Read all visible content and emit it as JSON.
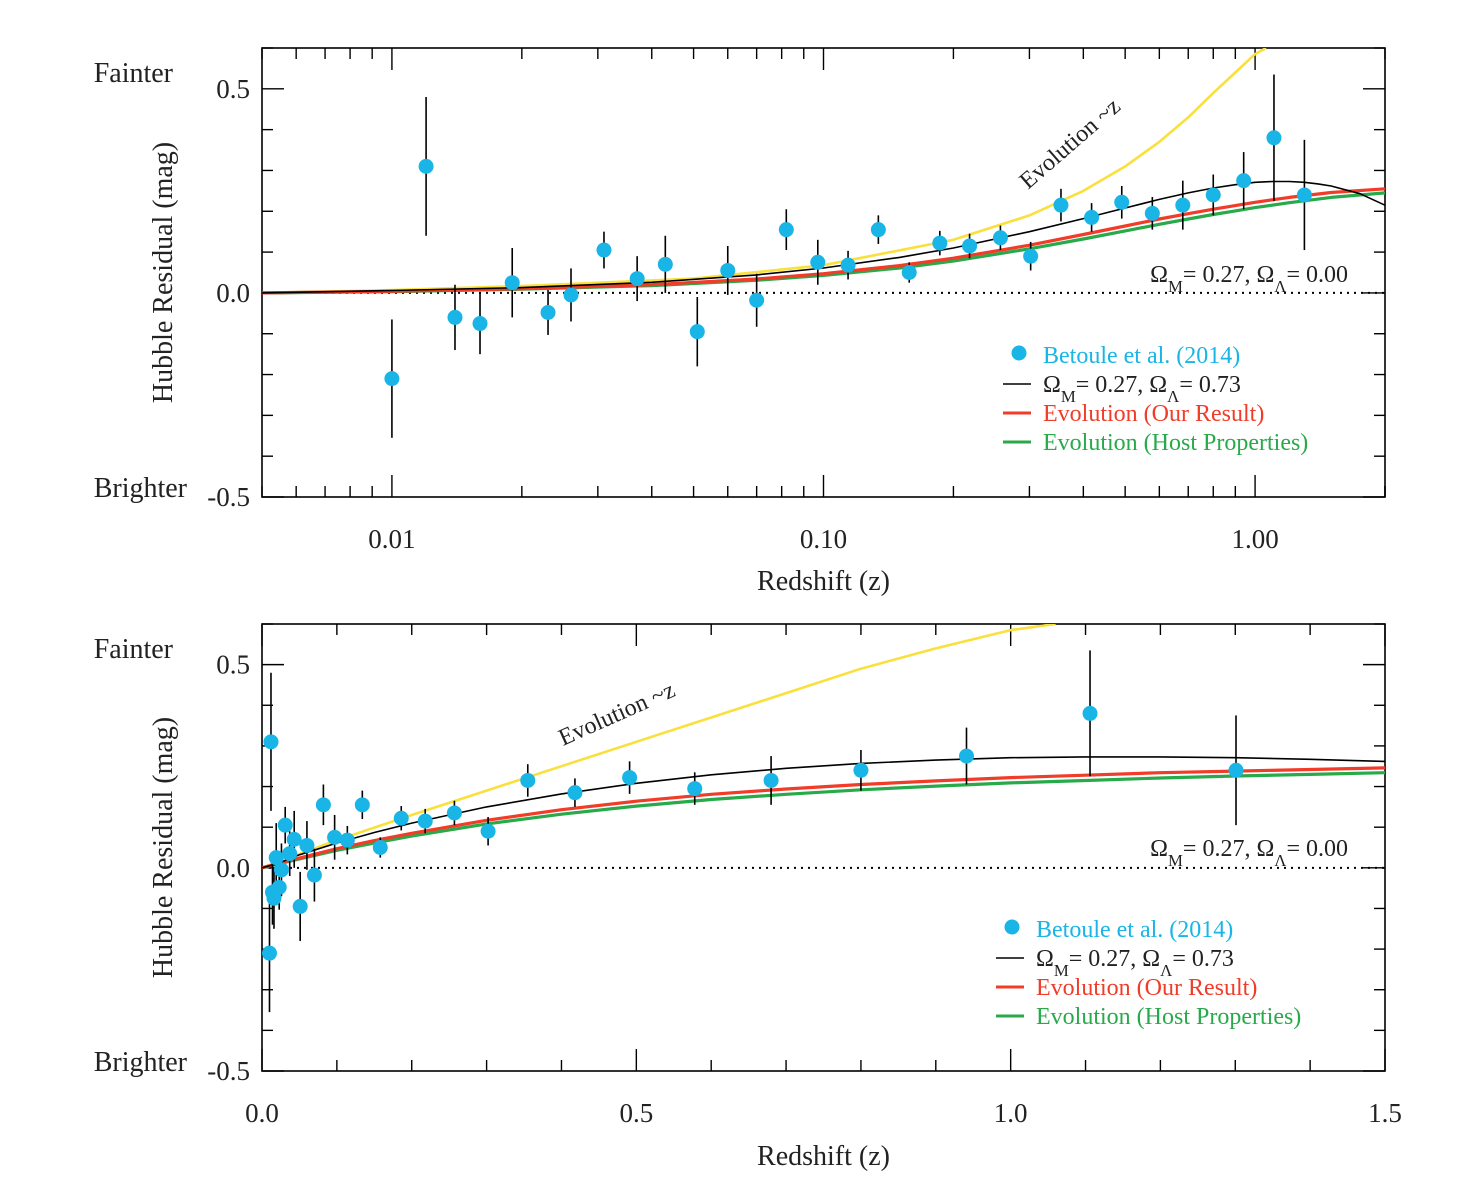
{
  "chart_data": [
    {
      "type": "scatter",
      "xscale": "log",
      "xlabel": "Redshift (z)",
      "ylabel": "Hubble Residual (mag)",
      "xlim": [
        0.005,
        2.0
      ],
      "ylim": [
        -0.5,
        0.6
      ],
      "x_ticks": [
        0.01,
        0.1,
        1.0
      ],
      "x_tick_labels": [
        "0.01",
        "0.10",
        "1.00"
      ],
      "y_ticks": [
        -0.5,
        0.0,
        0.5
      ],
      "y_tick_labels": [
        "-0.5",
        "0.0",
        "0.5"
      ],
      "top_label": "Fainter",
      "bottom_label": "Brighter",
      "reference_label": "Ω_M= 0.27,  Ω_Λ= 0.00",
      "annotation": "Evolution ~z",
      "legend_position": "lower-right",
      "legend": [
        {
          "label": "Betoule et al. (2014)",
          "kind": "marker",
          "color": "#19B5E6"
        },
        {
          "label": "Ω_M= 0.27, Ω_Λ= 0.73",
          "kind": "line",
          "color": "#000000"
        },
        {
          "label": "Evolution (Our Result)",
          "kind": "line",
          "color": "#F03C28"
        },
        {
          "label": "Evolution (Host Properties)",
          "kind": "line",
          "color": "#28AA4B"
        }
      ],
      "series": [
        {
          "name": "Betoule et al. (2014)",
          "kind": "points",
          "color": "#19B5E6",
          "x": [
            0.01,
            0.012,
            0.014,
            0.016,
            0.019,
            0.023,
            0.026,
            0.031,
            0.037,
            0.043,
            0.051,
            0.06,
            0.07,
            0.082,
            0.097,
            0.114,
            0.134,
            0.158,
            0.186,
            0.218,
            0.257,
            0.302,
            0.355,
            0.418,
            0.491,
            0.578,
            0.68,
            0.8,
            0.941,
            1.106,
            1.301
          ],
          "y": [
            -0.21,
            0.31,
            -0.06,
            -0.075,
            0.025,
            -0.048,
            -0.005,
            0.105,
            0.035,
            0.07,
            -0.095,
            0.055,
            -0.018,
            0.155,
            0.075,
            0.068,
            0.155,
            0.05,
            0.122,
            0.115,
            0.135,
            0.09,
            0.215,
            0.185,
            0.222,
            0.195,
            0.215,
            0.24,
            0.275,
            0.38,
            0.24
          ],
          "yerr": [
            0.145,
            0.17,
            0.08,
            0.075,
            0.085,
            0.055,
            0.065,
            0.045,
            0.055,
            0.07,
            0.085,
            0.06,
            0.065,
            0.05,
            0.055,
            0.035,
            0.035,
            0.025,
            0.03,
            0.03,
            0.03,
            0.035,
            0.04,
            0.035,
            0.04,
            0.04,
            0.06,
            0.05,
            0.07,
            0.155,
            0.135
          ]
        },
        {
          "name": "Ω_M= 0.27, Ω_Λ= 0.73",
          "kind": "line",
          "color": "#000000",
          "x": [
            0.005,
            0.01,
            0.02,
            0.04,
            0.07,
            0.1,
            0.15,
            0.2,
            0.3,
            0.4,
            0.5,
            0.6,
            0.7,
            0.8,
            0.9,
            1.0,
            1.1,
            1.2,
            1.3,
            1.4,
            1.5,
            1.75,
            2.0
          ],
          "y": [
            0.0,
            0.006,
            0.013,
            0.026,
            0.044,
            0.061,
            0.087,
            0.11,
            0.15,
            0.182,
            0.208,
            0.229,
            0.245,
            0.257,
            0.265,
            0.271,
            0.273,
            0.273,
            0.271,
            0.267,
            0.262,
            0.243,
            0.215
          ]
        },
        {
          "name": "Evolution (Our Result)",
          "kind": "line",
          "color": "#F03C28",
          "x": [
            0.005,
            0.01,
            0.02,
            0.04,
            0.07,
            0.1,
            0.15,
            0.2,
            0.3,
            0.4,
            0.5,
            0.6,
            0.7,
            0.8,
            0.9,
            1.0,
            1.2,
            1.5,
            2.0
          ],
          "y": [
            0.0,
            0.004,
            0.01,
            0.02,
            0.034,
            0.047,
            0.067,
            0.085,
            0.117,
            0.143,
            0.164,
            0.181,
            0.194,
            0.205,
            0.214,
            0.222,
            0.234,
            0.246,
            0.255
          ]
        },
        {
          "name": "Evolution (Host Properties)",
          "kind": "line",
          "color": "#28AA4B",
          "x": [
            0.005,
            0.01,
            0.02,
            0.04,
            0.07,
            0.1,
            0.15,
            0.2,
            0.3,
            0.4,
            0.5,
            0.6,
            0.7,
            0.8,
            0.9,
            1.0,
            1.2,
            1.5,
            2.0
          ],
          "y": [
            0.0,
            0.003,
            0.009,
            0.018,
            0.031,
            0.043,
            0.061,
            0.078,
            0.108,
            0.132,
            0.152,
            0.168,
            0.181,
            0.192,
            0.201,
            0.209,
            0.221,
            0.234,
            0.245
          ]
        },
        {
          "name": "Evolution ~z",
          "kind": "line",
          "color": "#FAE03C",
          "x": [
            0.005,
            0.01,
            0.02,
            0.05,
            0.1,
            0.2,
            0.3,
            0.4,
            0.5,
            0.6,
            0.7,
            0.8,
            0.9,
            1.0,
            1.06
          ],
          "y": [
            0.0,
            0.007,
            0.017,
            0.035,
            0.068,
            0.13,
            0.19,
            0.25,
            0.31,
            0.37,
            0.43,
            0.49,
            0.54,
            0.585,
            0.6
          ]
        },
        {
          "name": "Ω_M= 0.27,  Ω_Λ= 0.00",
          "kind": "dotted",
          "color": "#000000",
          "x": [
            0.005,
            2.0
          ],
          "y": [
            0.0,
            0.0
          ]
        }
      ]
    },
    {
      "type": "scatter",
      "xscale": "linear",
      "xlabel": "Redshift (z)",
      "ylabel": "Hubble Residual (mag)",
      "xlim": [
        0.0,
        1.5
      ],
      "ylim": [
        -0.5,
        0.6
      ],
      "x_ticks": [
        0.0,
        0.5,
        1.0,
        1.5
      ],
      "x_tick_labels": [
        "0.0",
        "0.5",
        "1.0",
        "1.5"
      ],
      "y_ticks": [
        -0.5,
        0.0,
        0.5
      ],
      "y_tick_labels": [
        "-0.5",
        "0.0",
        "0.5"
      ],
      "top_label": "Fainter",
      "bottom_label": "Brighter",
      "reference_label": "Ω_M= 0.27,  Ω_Λ= 0.00",
      "annotation": "Evolution ~z",
      "legend_position": "lower-right",
      "legend": [
        {
          "label": "Betoule et al. (2014)",
          "kind": "marker",
          "color": "#19B5E6"
        },
        {
          "label": "Ω_M= 0.27, Ω_Λ= 0.73",
          "kind": "line",
          "color": "#000000"
        },
        {
          "label": "Evolution (Our Result)",
          "kind": "line",
          "color": "#F03C28"
        },
        {
          "label": "Evolution (Host Properties)",
          "kind": "line",
          "color": "#28AA4B"
        }
      ],
      "series": [
        {
          "name": "Betoule et al. (2014)",
          "kind": "points",
          "color": "#19B5E6",
          "x": [
            0.01,
            0.012,
            0.014,
            0.016,
            0.019,
            0.023,
            0.026,
            0.031,
            0.037,
            0.043,
            0.051,
            0.06,
            0.07,
            0.082,
            0.097,
            0.114,
            0.134,
            0.158,
            0.186,
            0.218,
            0.257,
            0.302,
            0.355,
            0.418,
            0.491,
            0.578,
            0.68,
            0.8,
            0.941,
            1.106,
            1.301
          ],
          "y": [
            -0.21,
            0.31,
            -0.06,
            -0.075,
            0.025,
            -0.048,
            -0.005,
            0.105,
            0.035,
            0.07,
            -0.095,
            0.055,
            -0.018,
            0.155,
            0.075,
            0.068,
            0.155,
            0.05,
            0.122,
            0.115,
            0.135,
            0.09,
            0.215,
            0.185,
            0.222,
            0.195,
            0.215,
            0.24,
            0.275,
            0.38,
            0.24
          ],
          "yerr": [
            0.145,
            0.17,
            0.08,
            0.075,
            0.085,
            0.055,
            0.065,
            0.045,
            0.055,
            0.07,
            0.085,
            0.06,
            0.065,
            0.05,
            0.055,
            0.035,
            0.035,
            0.025,
            0.03,
            0.03,
            0.03,
            0.035,
            0.04,
            0.035,
            0.04,
            0.04,
            0.06,
            0.05,
            0.07,
            0.155,
            0.135
          ]
        },
        {
          "name": "Ω_M= 0.27, Ω_Λ= 0.73",
          "kind": "line",
          "color": "#000000",
          "x": [
            0.0,
            0.02,
            0.05,
            0.1,
            0.15,
            0.2,
            0.3,
            0.4,
            0.5,
            0.6,
            0.7,
            0.8,
            0.9,
            1.0,
            1.1,
            1.2,
            1.3,
            1.4,
            1.5
          ],
          "y": [
            0.0,
            0.01,
            0.032,
            0.061,
            0.087,
            0.11,
            0.15,
            0.182,
            0.208,
            0.229,
            0.245,
            0.257,
            0.265,
            0.271,
            0.273,
            0.273,
            0.271,
            0.267,
            0.262
          ]
        },
        {
          "name": "Evolution (Our Result)",
          "kind": "line",
          "color": "#F03C28",
          "x": [
            0.0,
            0.02,
            0.05,
            0.1,
            0.15,
            0.2,
            0.3,
            0.4,
            0.5,
            0.6,
            0.7,
            0.8,
            0.9,
            1.0,
            1.1,
            1.2,
            1.3,
            1.4,
            1.5
          ],
          "y": [
            0.0,
            0.01,
            0.024,
            0.047,
            0.067,
            0.085,
            0.117,
            0.143,
            0.164,
            0.181,
            0.194,
            0.205,
            0.214,
            0.222,
            0.228,
            0.234,
            0.238,
            0.242,
            0.246
          ]
        },
        {
          "name": "Evolution (Host Properties)",
          "kind": "line",
          "color": "#28AA4B",
          "x": [
            0.0,
            0.02,
            0.05,
            0.1,
            0.15,
            0.2,
            0.3,
            0.4,
            0.5,
            0.6,
            0.7,
            0.8,
            0.9,
            1.0,
            1.1,
            1.2,
            1.3,
            1.4,
            1.5
          ],
          "y": [
            0.0,
            0.009,
            0.022,
            0.043,
            0.061,
            0.078,
            0.108,
            0.132,
            0.152,
            0.168,
            0.181,
            0.192,
            0.201,
            0.209,
            0.215,
            0.221,
            0.226,
            0.23,
            0.234
          ]
        },
        {
          "name": "Evolution ~z",
          "kind": "line",
          "color": "#FAE03C",
          "x": [
            0.0,
            0.1,
            0.2,
            0.3,
            0.4,
            0.5,
            0.6,
            0.7,
            0.8,
            0.9,
            1.0,
            1.06
          ],
          "y": [
            0.0,
            0.068,
            0.13,
            0.19,
            0.25,
            0.31,
            0.37,
            0.43,
            0.49,
            0.54,
            0.585,
            0.6
          ]
        },
        {
          "name": "Ω_M= 0.27,  Ω_Λ= 0.00",
          "kind": "dotted",
          "color": "#000000",
          "x": [
            0.0,
            1.5
          ],
          "y": [
            0.0,
            0.0
          ]
        }
      ]
    }
  ]
}
